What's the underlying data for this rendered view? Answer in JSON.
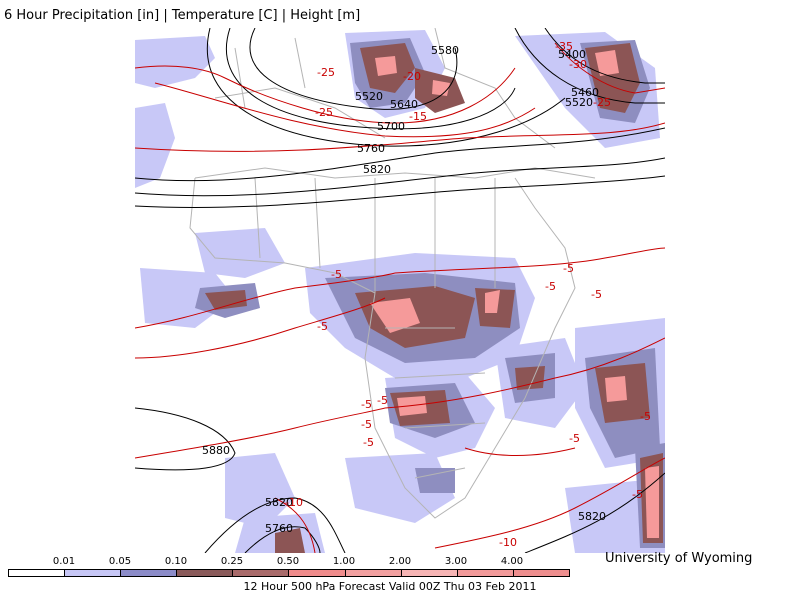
{
  "title": "6 Hour Precipitation [in] | Temperature [C] | Height [m]",
  "credit": "University of Wyoming",
  "footer": "12 Hour 500 hPa Forecast Valid 00Z Thu 03 Feb 2011",
  "scale": {
    "ticks": [
      "0.01",
      "0.05",
      "0.10",
      "0.25",
      "0.50",
      "1.00",
      "2.00",
      "3.00",
      "4.00"
    ],
    "colors": [
      "#ffffff",
      "#c6c6f5",
      "#8c8cc9",
      "#8a5a5a",
      "#a86a6a",
      "#f08c8c",
      "#f2a0a0",
      "#f6b4b4",
      "#f29a9a",
      "#ee8e8e"
    ]
  },
  "colors": {
    "height_contour": "#000000",
    "temperature_contour": "#c80000",
    "map_border": "#b4b4b4",
    "precip_light": "#c8c8f7",
    "precip_medium": "#8e8ec0",
    "precip_heavy": "#8c5555",
    "precip_peak": "#f59a9a"
  },
  "height_labels": [
    "5580",
    "5520",
    "5640",
    "5700",
    "5760",
    "5820",
    "5400",
    "5460",
    "5520",
    "5880",
    "5820",
    "5760",
    "5820"
  ],
  "temperature_labels": [
    "-35",
    "-30",
    "-25",
    "-25",
    "-20",
    "-15",
    "-25",
    "-5",
    "-5",
    "-5",
    "-5",
    "-5",
    "-5",
    "-5",
    "-5",
    "-5",
    "-5",
    "-10",
    "-5",
    "-10",
    "-5"
  ]
}
